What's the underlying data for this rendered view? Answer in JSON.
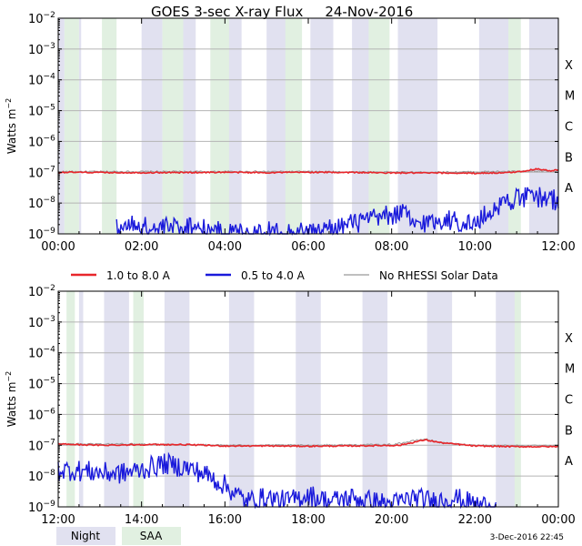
{
  "figure": {
    "title": "GOES 3-sec X-ray Flux",
    "date": "24-Nov-2016",
    "timestamp": "3-Dec-2016 22:45",
    "ylabel": "Watts m",
    "ylabel_sup": "−2",
    "y_ticks": [
      {
        "base": "10",
        "exp": "−2"
      },
      {
        "base": "10",
        "exp": "−3"
      },
      {
        "base": "10",
        "exp": "−4"
      },
      {
        "base": "10",
        "exp": "−5"
      },
      {
        "base": "10",
        "exp": "−6"
      },
      {
        "base": "10",
        "exp": "−7"
      },
      {
        "base": "10",
        "exp": "−8"
      },
      {
        "base": "10",
        "exp": "−9"
      }
    ],
    "flare_classes": [
      "X",
      "M",
      "C",
      "B",
      "A"
    ],
    "legend": {
      "long": "1.0 to 8.0 A",
      "short": "0.5 to 4.0 A",
      "no_rhessi": "No RHESSI Solar Data",
      "night": "Night",
      "saa": "SAA"
    },
    "colors": {
      "long": "#e8262b",
      "short": "#1a1adb",
      "no_rhessi": "#999999",
      "night": "#e1e1f0",
      "saa": "#e1f0e1",
      "grid": "#b4b4b4"
    }
  },
  "chart_data": [
    {
      "type": "line",
      "title": "GOES 3-sec X-ray Flux   24-Nov-2016",
      "ylabel": "Watts m^-2",
      "yscale": "log",
      "ylim": [
        1e-09,
        0.01
      ],
      "x_range_hours": [
        0,
        12
      ],
      "x_ticks": [
        "00:00",
        "02:00",
        "04:00",
        "06:00",
        "08:00",
        "10:00",
        "12:00"
      ],
      "night": [
        [
          0.0,
          0.15
        ],
        [
          0.5,
          0.55
        ],
        [
          2.0,
          2.5
        ],
        [
          2.82,
          3.3
        ],
        [
          4.0,
          4.4
        ],
        [
          5.0,
          5.6
        ],
        [
          6.05,
          6.6
        ],
        [
          7.05,
          7.6
        ],
        [
          8.15,
          9.1
        ],
        [
          10.1,
          10.8
        ],
        [
          11.3,
          12.0
        ]
      ],
      "saa": [
        [
          0.15,
          0.5
        ],
        [
          1.05,
          1.4
        ],
        [
          2.5,
          3.0
        ],
        [
          3.65,
          4.1
        ],
        [
          5.45,
          5.85
        ],
        [
          7.45,
          7.95
        ],
        [
          10.8,
          11.1
        ]
      ],
      "series": [
        {
          "name": "1.0 to 8.0 A",
          "points": [
            [
              0.0,
              1e-07
            ],
            [
              1.0,
              9.8e-08
            ],
            [
              2.0,
              9.7e-08
            ],
            [
              3.0,
              9.8e-08
            ],
            [
              4.0,
              1e-07
            ],
            [
              5.0,
              9.7e-08
            ],
            [
              6.0,
              1e-07
            ],
            [
              7.0,
              9.9e-08
            ],
            [
              8.0,
              9.5e-08
            ],
            [
              9.0,
              9.5e-08
            ],
            [
              10.0,
              9.3e-08
            ],
            [
              10.8,
              9.7e-08
            ],
            [
              11.2,
              1.1e-07
            ],
            [
              11.5,
              1.3e-07
            ],
            [
              11.8,
              1.1e-07
            ],
            [
              12.0,
              1.2e-07
            ]
          ]
        },
        {
          "name": "0.5 to 4.0 A",
          "points": [
            [
              1.4,
              1.5e-09
            ],
            [
              1.9,
              2e-09
            ],
            [
              2.3,
              1.4e-09
            ],
            [
              3.2,
              2e-09
            ],
            [
              3.6,
              1.2e-09
            ],
            [
              6.1,
              1.1e-09
            ],
            [
              8.3,
              5e-09
            ],
            [
              8.5,
              2e-09
            ],
            [
              9.3,
              3e-09
            ],
            [
              10.0,
              2e-09
            ],
            [
              10.4,
              6e-09
            ],
            [
              10.8,
              1.3e-08
            ],
            [
              11.2,
              1.5e-08
            ],
            [
              11.5,
              1.6e-08
            ],
            [
              11.8,
              1.4e-08
            ],
            [
              12.0,
              1.2e-08
            ]
          ]
        },
        {
          "name": "No RHESSI Solar Data",
          "points": [
            [
              0.0,
              1.05e-07
            ],
            [
              3.0,
              1.05e-07
            ],
            [
              6.0,
              1.05e-07
            ],
            [
              9.0,
              1e-07
            ],
            [
              12.0,
              1.1e-07
            ]
          ]
        }
      ]
    },
    {
      "type": "line",
      "title": "GOES 3-sec X-ray Flux   24-Nov-2016",
      "ylabel": "Watts m^-2",
      "yscale": "log",
      "ylim": [
        1e-09,
        0.01
      ],
      "x_range_hours": [
        12,
        24
      ],
      "x_ticks": [
        "12:00",
        "14:00",
        "16:00",
        "18:00",
        "20:00",
        "22:00",
        "00:00"
      ],
      "night": [
        [
          12.5,
          12.6
        ],
        [
          13.1,
          13.7
        ],
        [
          14.55,
          15.15
        ],
        [
          16.1,
          16.7
        ],
        [
          17.7,
          18.3
        ],
        [
          19.3,
          19.9
        ],
        [
          20.85,
          21.45
        ],
        [
          22.5,
          23.1
        ]
      ],
      "saa": [
        [
          12.2,
          12.4
        ],
        [
          13.8,
          14.05
        ],
        [
          22.95,
          23.1
        ]
      ],
      "series": [
        {
          "name": "1.0 to 8.0 A",
          "points": [
            [
              12.0,
              1.1e-07
            ],
            [
              13.0,
              1e-07
            ],
            [
              14.0,
              1.05e-07
            ],
            [
              15.0,
              1.05e-07
            ],
            [
              16.0,
              9.5e-08
            ],
            [
              17.0,
              9.5e-08
            ],
            [
              18.0,
              9.3e-08
            ],
            [
              19.0,
              9.5e-08
            ],
            [
              19.8,
              9.8e-08
            ],
            [
              20.2,
              1e-07
            ],
            [
              20.8,
              1.5e-07
            ],
            [
              21.2,
              1.2e-07
            ],
            [
              22.0,
              9.5e-08
            ],
            [
              23.0,
              9e-08
            ],
            [
              24.0,
              9e-08
            ]
          ]
        },
        {
          "name": "0.5 to 4.0 A",
          "points": [
            [
              12.0,
              1.6e-08
            ],
            [
              12.5,
              1.5e-08
            ],
            [
              13.0,
              1.3e-08
            ],
            [
              13.5,
              1.2e-08
            ],
            [
              14.0,
              1.6e-08
            ],
            [
              14.5,
              2.5e-08
            ],
            [
              15.0,
              2e-08
            ],
            [
              15.5,
              1.2e-08
            ],
            [
              16.0,
              5e-09
            ],
            [
              16.5,
              1.5e-09
            ],
            [
              17.0,
              2e-09
            ],
            [
              17.5,
              1.5e-09
            ],
            [
              18.0,
              2.5e-09
            ],
            [
              18.5,
              1.5e-09
            ],
            [
              19.0,
              2e-09
            ],
            [
              20.0,
              1.2e-09
            ],
            [
              20.5,
              2e-09
            ],
            [
              21.0,
              1.5e-09
            ],
            [
              21.5,
              2e-09
            ],
            [
              22.0,
              1.2e-09
            ],
            [
              22.5,
              1e-09
            ]
          ]
        },
        {
          "name": "No RHESSI Solar Data",
          "points": [
            [
              12.0,
              1.1e-07
            ],
            [
              14.0,
              1.1e-07
            ],
            [
              16.0,
              1e-07
            ],
            [
              18.0,
              1e-07
            ],
            [
              20.0,
              1.05e-07
            ],
            [
              20.8,
              1.6e-07
            ],
            [
              21.2,
              1.2e-07
            ],
            [
              22.0,
              1e-07
            ],
            [
              24.0,
              9.5e-08
            ]
          ]
        }
      ]
    }
  ]
}
